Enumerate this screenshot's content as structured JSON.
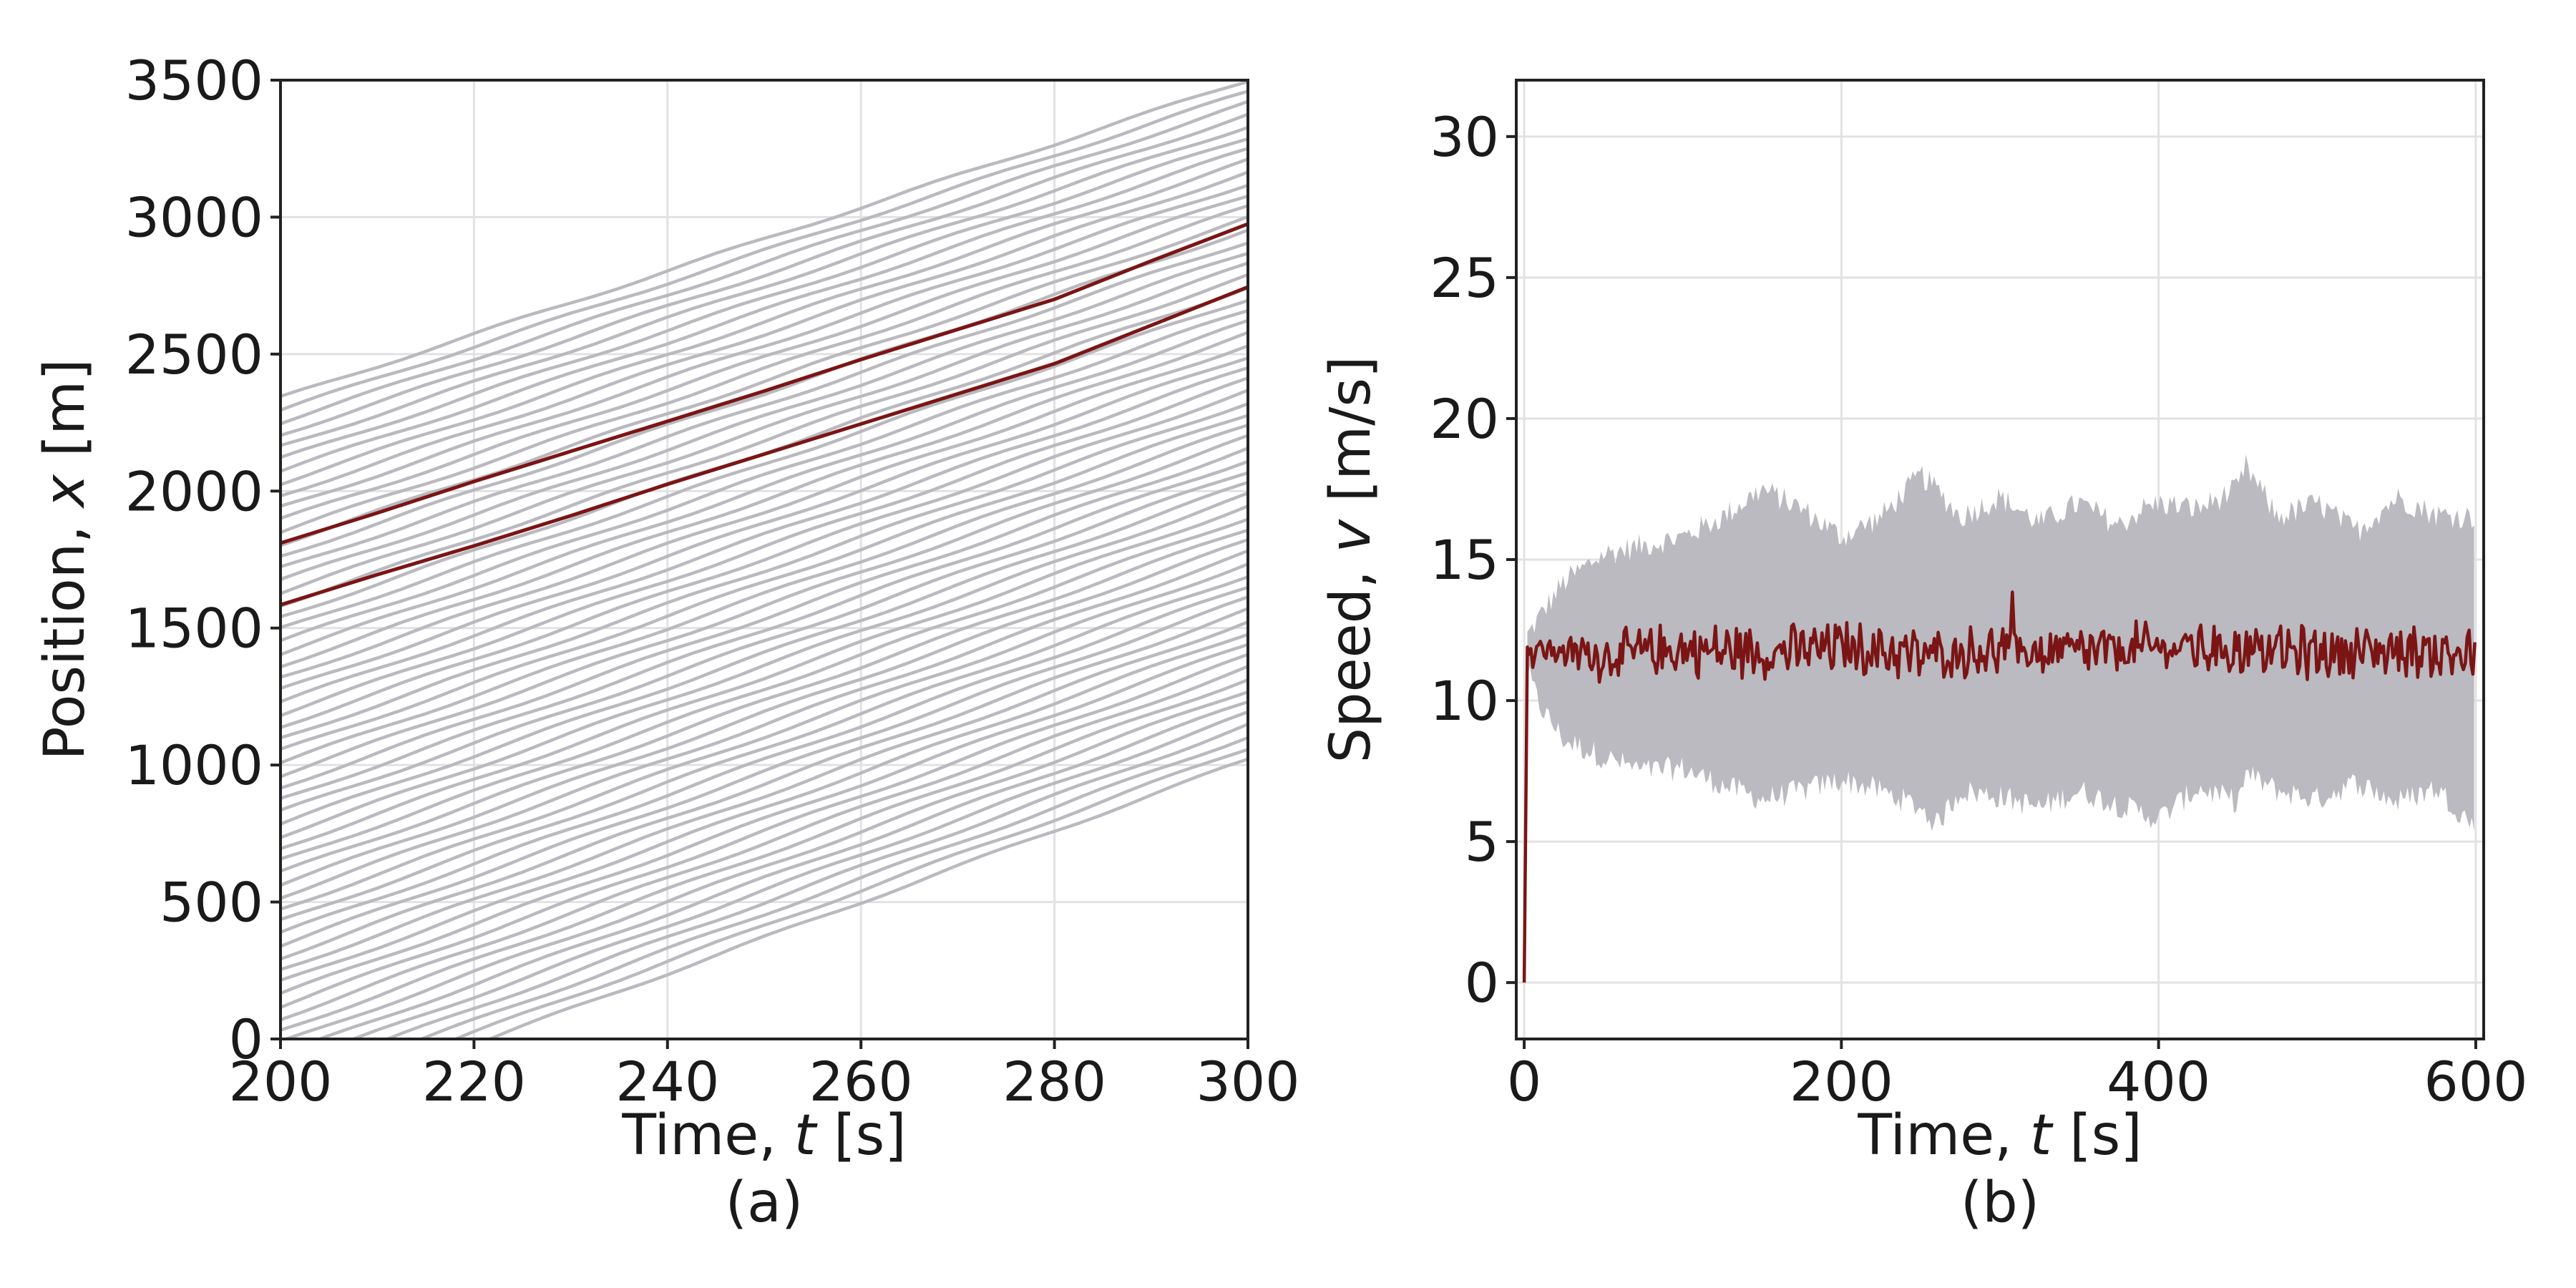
{
  "colors": {
    "highlight": "#7b1515",
    "background_traj": "#b9b9bf",
    "band": "#babac0",
    "grid": "#e2e2e2",
    "axis": "#222222"
  },
  "chart_data": [
    {
      "type": "line",
      "panel_label": "(a)",
      "xlabel_main": "Time, ",
      "xlabel_var": "t",
      "xlabel_unit": " [s]",
      "ylabel_main": "Position, ",
      "ylabel_var": "x",
      "ylabel_unit": " [m]",
      "xlim": [
        200,
        300
      ],
      "ylim": [
        0,
        3500
      ],
      "xticks": [
        200,
        220,
        240,
        260,
        280,
        300
      ],
      "yticks": [
        0,
        500,
        1000,
        1500,
        2000,
        2500,
        3000,
        3500
      ],
      "grid": true,
      "background_trajectories": {
        "count": 60,
        "top_x_at_t200": 2340,
        "top_x_at_t300": 3500,
        "bottom_x_at_t200": -280,
        "bottom_x_at_t300": 1020
      },
      "series": [
        {
          "x": [
            200,
            210,
            220,
            230,
            240,
            250,
            260,
            270,
            280,
            290,
            300
          ],
          "y": [
            1810,
            1920,
            2035,
            2145,
            2255,
            2365,
            2480,
            2590,
            2700,
            2840,
            2975
          ]
        },
        {
          "x": [
            200,
            210,
            220,
            230,
            240,
            250,
            260,
            270,
            280,
            290,
            300
          ],
          "y": [
            1585,
            1695,
            1800,
            1910,
            2025,
            2135,
            2245,
            2355,
            2465,
            2605,
            2745
          ]
        }
      ]
    },
    {
      "type": "area",
      "panel_label": "(b)",
      "xlabel_main": "Time, ",
      "xlabel_var": "t",
      "xlabel_unit": " [s]",
      "ylabel_main": "Speed, ",
      "ylabel_var": "v",
      "ylabel_unit": " [m/s]",
      "xlim": [
        -5,
        605
      ],
      "ylim": [
        -2,
        32
      ],
      "xticks": [
        0,
        200,
        400,
        600
      ],
      "yticks": [
        0,
        5,
        10,
        15,
        20,
        25,
        30
      ],
      "grid": true,
      "band": {
        "x": [
          2,
          10,
          25,
          50,
          75,
          100,
          125,
          150,
          175,
          200,
          225,
          250,
          260,
          275,
          300,
          325,
          350,
          375,
          390,
          400,
          425,
          450,
          455,
          475,
          500,
          525,
          550,
          575,
          600
        ],
        "upper": [
          12.3,
          13.0,
          14.2,
          15.2,
          15.5,
          15.8,
          16.5,
          17.5,
          16.8,
          15.8,
          16.5,
          18.0,
          17.5,
          16.5,
          17.2,
          16.3,
          17.0,
          16.2,
          16.8,
          17.0,
          16.8,
          17.5,
          18.3,
          16.5,
          17.0,
          16.0,
          17.2,
          16.6,
          16.5
        ],
        "lower": [
          11.0,
          9.8,
          8.6,
          8.0,
          7.5,
          7.6,
          7.0,
          6.5,
          6.8,
          7.2,
          6.8,
          6.2,
          5.6,
          6.8,
          6.6,
          6.2,
          6.8,
          6.3,
          6.0,
          5.8,
          6.9,
          6.4,
          7.4,
          6.8,
          6.5,
          7.1,
          6.4,
          6.9,
          5.5
        ]
      },
      "series": [
        {
          "x": [
            0,
            2,
            4,
            10,
            50,
            100,
            150,
            200,
            250,
            300,
            350,
            400,
            450,
            500,
            550,
            600
          ],
          "y": [
            0,
            11.9,
            11.7,
            11.8,
            11.6,
            11.8,
            11.7,
            11.9,
            11.6,
            11.8,
            11.7,
            11.9,
            11.8,
            11.7,
            11.8,
            11.6
          ]
        }
      ]
    }
  ]
}
